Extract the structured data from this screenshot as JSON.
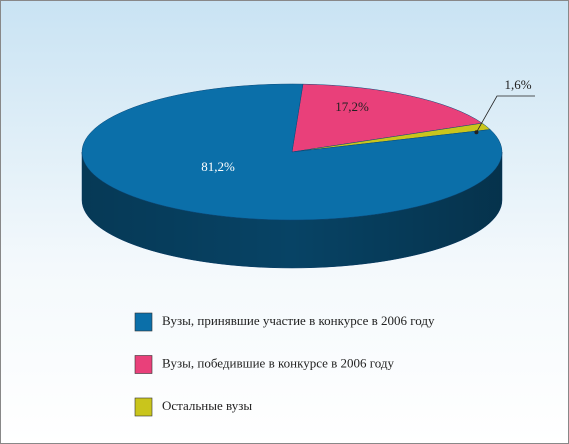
{
  "chart_data": {
    "type": "pie",
    "categories": [
      "Вузы, принявшие участие в конкурсе в 2006 году",
      "Вузы, победившие в конкурсе в 2006 году",
      "Остальные вузы"
    ],
    "values": [
      81.2,
      17.2,
      1.6
    ],
    "value_labels": [
      "81,2%",
      "17,2%",
      "1,6%"
    ],
    "colors": [
      "#0b6fa9",
      "#e9407a",
      "#c9c51c"
    ]
  }
}
